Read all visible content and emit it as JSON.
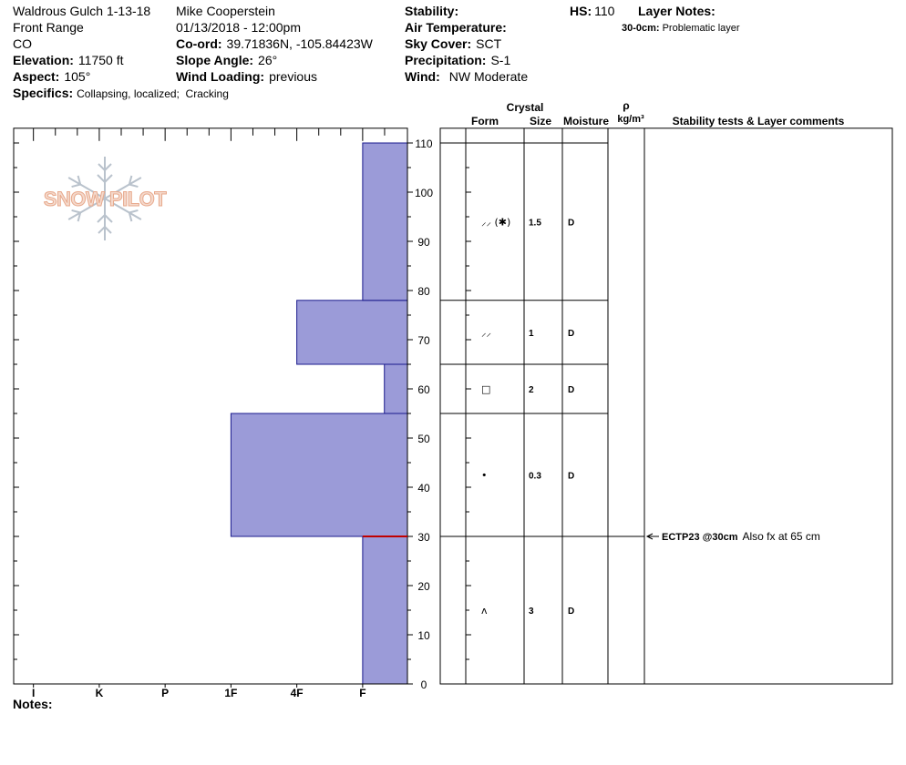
{
  "header": {
    "title": "Waldrous Gulch 1-13-18",
    "range": "Front Range",
    "state": "CO",
    "elevation": {
      "label": "Elevation:",
      "value": "11750 ft"
    },
    "aspect": {
      "label": "Aspect:",
      "value": "105°"
    },
    "specifics": {
      "label": "Specifics:",
      "value": "Collapsing, localized;  Cracking"
    },
    "observer": "Mike Cooperstein",
    "datetime": "01/13/2018 - 12:00pm",
    "coord": {
      "label": "Co-ord:",
      "value": "39.71836N, -105.84423W"
    },
    "slope": {
      "label": "Slope Angle:",
      "value": "26°"
    },
    "wind_loading": {
      "label": "Wind Loading:",
      "value": "previous"
    },
    "stability": {
      "label": "Stability:"
    },
    "air_temp": {
      "label": "Air Temperature:"
    },
    "sky": {
      "label": "Sky Cover:",
      "value": "SCT"
    },
    "precip": {
      "label": "Precipitation:",
      "value": "S-1"
    },
    "wind": {
      "label": "Wind:",
      "value": "NW Moderate"
    },
    "hs": {
      "label": "HS:",
      "value": 110
    },
    "layer_notes": {
      "label": "Layer Notes:",
      "range": "30-0cm:",
      "note": "Problematic layer"
    },
    "logo": "SNOW PILOT"
  },
  "columns": {
    "crystal": "Crystal",
    "form": "Form",
    "size": "Size",
    "moisture": "Moisture",
    "density_symbol": "ρ",
    "density_unit": "kg/m³",
    "comments": "Stability tests & Layer comments"
  },
  "notes": {
    "label": "Notes:"
  },
  "chart_data": {
    "type": "snow-profile",
    "color": "#9b9bd8",
    "ylim": [
      0,
      113
    ],
    "yticks": [
      0,
      10,
      20,
      30,
      40,
      50,
      60,
      70,
      80,
      90,
      100,
      110
    ],
    "xlim": [
      6.3,
      0.32
    ],
    "xticks": [
      {
        "value": 6,
        "label": "I"
      },
      {
        "value": 5,
        "label": "K"
      },
      {
        "value": 4,
        "label": "P"
      },
      {
        "value": 3,
        "label": "1F"
      },
      {
        "value": 2,
        "label": "4F"
      },
      {
        "value": 1,
        "label": "F"
      }
    ],
    "layers": [
      {
        "bottom": 0,
        "top": 30,
        "hardness": 1,
        "form": "ʌ",
        "size": 3,
        "moisture": "D"
      },
      {
        "bottom": 30,
        "top": 55,
        "hardness": 3,
        "form": "•",
        "size": 0.3,
        "moisture": "D"
      },
      {
        "bottom": 55,
        "top": 65,
        "hardness": 0.67,
        "form": "□",
        "size": 2,
        "moisture": "D"
      },
      {
        "bottom": 65,
        "top": 78,
        "hardness": 2,
        "form": "⸝⸝",
        "size": 1,
        "moisture": "D"
      },
      {
        "bottom": 78,
        "top": 110,
        "hardness": 1,
        "form": "⸝⸝ (✱)",
        "size": 1.5,
        "moisture": "D"
      }
    ],
    "stability_tests": [
      {
        "height": 30,
        "label": "ECTP23 @30cm",
        "comment": "Also fx at 65 cm",
        "color": "#c00000"
      }
    ]
  }
}
